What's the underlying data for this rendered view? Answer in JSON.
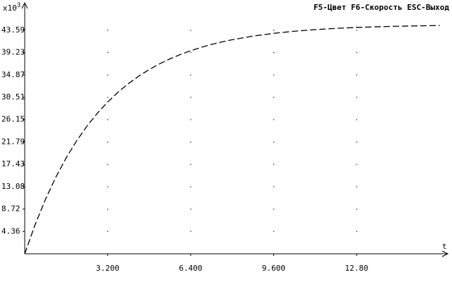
{
  "header": {
    "hint": "F5-Цвет F6-Скорость ESC-Выход"
  },
  "chart_data": {
    "type": "line",
    "y_axis_label": "x10",
    "y_axis_exponent": "3",
    "x_axis_label": "t",
    "x": [
      0,
      0.4,
      0.8,
      1.2,
      1.6,
      2.0,
      2.4,
      2.8,
      3.2,
      3.6,
      4.0,
      4.4,
      4.8,
      5.2,
      5.6,
      6.0,
      6.4,
      6.8,
      7.2,
      7.6,
      8.0,
      8.8,
      9.6,
      10.4,
      11.2,
      12.0,
      12.8,
      13.6,
      14.4,
      15.2,
      16.0
    ],
    "series": [
      {
        "color": "#000000",
        "dashed": true,
        "values": [
          0,
          5.67,
          10.62,
          14.94,
          18.72,
          22.01,
          24.89,
          27.4,
          29.59,
          31.51,
          33.18,
          34.64,
          35.92,
          37.03,
          38.0,
          38.85,
          39.59,
          40.24,
          40.81,
          41.3,
          41.73,
          42.44,
          42.97,
          43.39,
          43.7,
          43.94,
          44.12,
          44.26,
          44.36,
          44.44,
          44.5
        ]
      }
    ],
    "xlim": [
      0,
      16.15
    ],
    "ylim": [
      0,
      48.1
    ],
    "xticks": [
      {
        "value": 3.2,
        "label": "3.200"
      },
      {
        "value": 6.4,
        "label": "6.400"
      },
      {
        "value": 9.6,
        "label": "9.600"
      },
      {
        "value": 12.8,
        "label": "12.80"
      }
    ],
    "yticks": [
      4.36,
      8.72,
      13.08,
      17.43,
      21.79,
      26.15,
      30.51,
      34.87,
      39.23,
      43.59
    ],
    "grid": "dots"
  }
}
